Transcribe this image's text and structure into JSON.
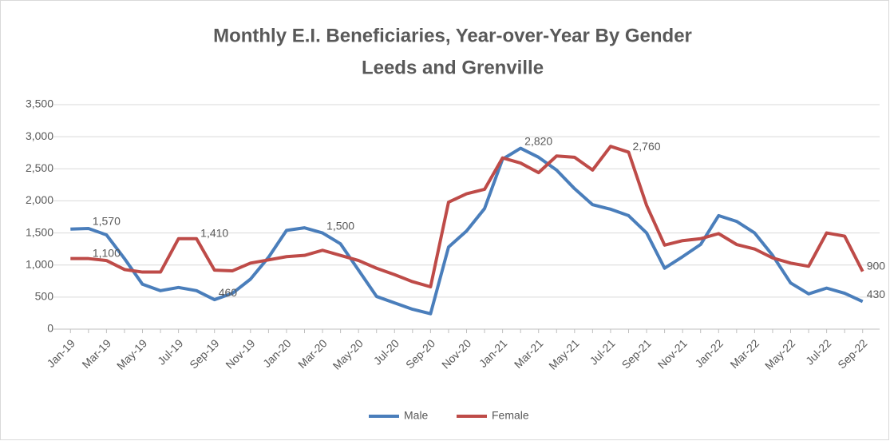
{
  "chart_data": {
    "type": "line",
    "title": "Monthly E.I. Beneficiaries, Year-over-Year By Gender",
    "subtitle": "Leeds and Grenville",
    "categories": [
      "Jan-19",
      null,
      "Mar-19",
      null,
      "May-19",
      null,
      "Jul-19",
      null,
      "Sep-19",
      null,
      "Nov-19",
      null,
      "Jan-20",
      null,
      "Mar-20",
      null,
      "May-20",
      null,
      "Jul-20",
      null,
      "Sep-20",
      null,
      "Nov-20",
      null,
      "Jan-21",
      null,
      "Mar-21",
      null,
      "May-21",
      null,
      "Jul-21",
      null,
      "Sep-21",
      null,
      "Nov-21",
      null,
      "Jan-22",
      null,
      "Mar-22",
      null,
      "May-22",
      null,
      "Jul-22",
      null,
      "Sep-22"
    ],
    "series": [
      {
        "name": "Male",
        "color": "#4a7ebb",
        "values": [
          1560,
          1570,
          1470,
          1100,
          700,
          600,
          650,
          600,
          460,
          560,
          780,
          1120,
          1540,
          1580,
          1500,
          1330,
          920,
          510,
          410,
          310,
          240,
          1280,
          1530,
          1880,
          2650,
          2820,
          2680,
          2480,
          2190,
          1940,
          1870,
          1770,
          1500,
          950,
          1130,
          1320,
          1770,
          1680,
          1500,
          1150,
          720,
          550,
          640,
          560,
          430
        ],
        "value_labels": [
          null,
          "1,570",
          null,
          null,
          null,
          null,
          null,
          null,
          "460",
          null,
          null,
          null,
          null,
          null,
          "1,500",
          null,
          null,
          null,
          null,
          null,
          null,
          null,
          null,
          null,
          null,
          "2,820",
          null,
          null,
          null,
          null,
          null,
          null,
          null,
          null,
          null,
          null,
          null,
          null,
          null,
          null,
          null,
          null,
          null,
          null,
          "430"
        ]
      },
      {
        "name": "Female",
        "color": "#be4b48",
        "values": [
          1100,
          1100,
          1070,
          930,
          890,
          890,
          1410,
          1410,
          920,
          910,
          1030,
          1080,
          1130,
          1150,
          1230,
          1150,
          1070,
          950,
          850,
          740,
          660,
          1980,
          2110,
          2180,
          2670,
          2590,
          2440,
          2700,
          2680,
          2480,
          2850,
          2760,
          1930,
          1310,
          1380,
          1410,
          1490,
          1320,
          1250,
          1110,
          1030,
          980,
          1500,
          1450,
          900
        ],
        "value_labels": [
          null,
          "1,100",
          null,
          null,
          null,
          null,
          null,
          "1,410",
          null,
          null,
          null,
          null,
          null,
          null,
          null,
          null,
          null,
          null,
          null,
          null,
          null,
          null,
          null,
          null,
          null,
          null,
          null,
          null,
          null,
          null,
          null,
          "2,760",
          null,
          null,
          null,
          null,
          null,
          null,
          null,
          null,
          null,
          null,
          null,
          null,
          "900"
        ]
      }
    ],
    "ylim": [
      0,
      3500
    ],
    "yticks": [
      0,
      500,
      {
        "value": 1000,
        "label": "1,000"
      },
      {
        "value": 1500,
        "label": "1,500"
      },
      {
        "value": 2000,
        "label": "2,000"
      },
      {
        "value": 2500,
        "label": "2,500"
      },
      {
        "value": 3000,
        "label": "3,000"
      },
      {
        "value": 3500,
        "label": "3,500"
      }
    ],
    "grid": true,
    "legend": "bottom"
  }
}
